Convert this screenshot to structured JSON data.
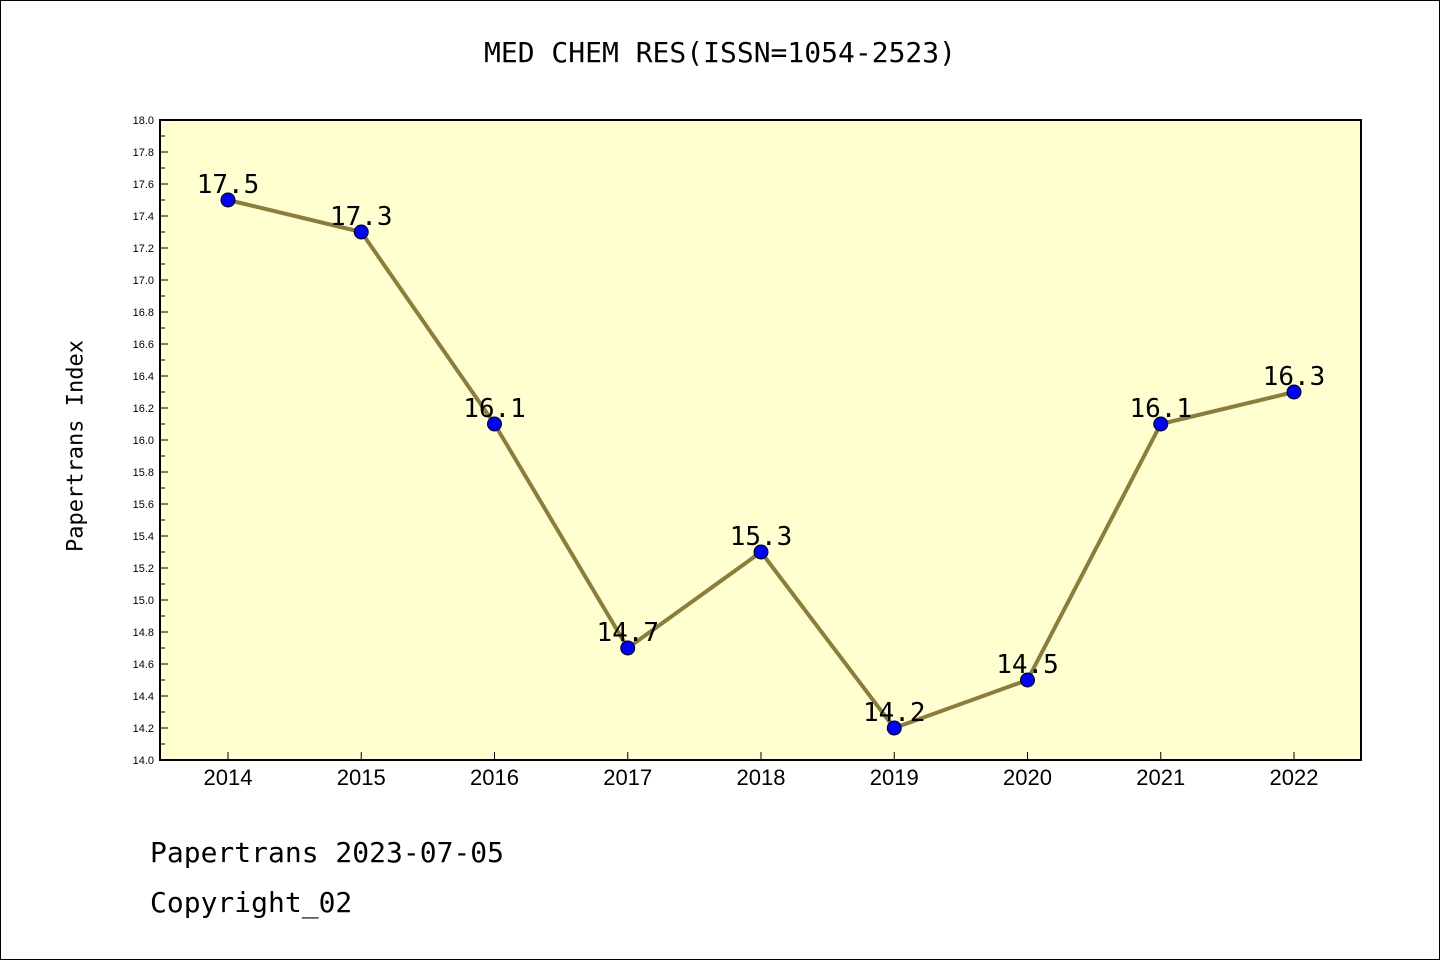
{
  "chart_data": {
    "type": "line",
    "title": "MED CHEM RES(ISSN=1054-2523)",
    "xlabel": "",
    "ylabel": "Papertrans Index",
    "categories": [
      "2014",
      "2015",
      "2016",
      "2017",
      "2018",
      "2019",
      "2020",
      "2021",
      "2022"
    ],
    "series": [
      {
        "values": [
          17.5,
          17.3,
          16.1,
          14.7,
          15.3,
          14.2,
          14.5,
          16.1,
          16.3
        ]
      }
    ],
    "data_labels": [
      "17.5",
      "17.3",
      "16.1",
      "14.7",
      "15.3",
      "14.2",
      "14.5",
      "16.1",
      "16.3"
    ],
    "ylim": [
      14.0,
      18.0
    ],
    "yticks": [
      "14.0",
      "14.2",
      "14.4",
      "14.6",
      "14.8",
      "15.0",
      "15.2",
      "15.4",
      "15.6",
      "15.8",
      "16.0",
      "16.2",
      "16.4",
      "16.6",
      "16.8",
      "17.0",
      "17.2",
      "17.4",
      "17.6",
      "17.8",
      "18.0"
    ],
    "grid": false,
    "colors": {
      "plot_background": "#ffffd0",
      "line": "#8b7d3a",
      "marker": "#0000ff"
    }
  },
  "footer": {
    "line1": "Papertrans 2023-07-05",
    "line2": "Copyright_02"
  }
}
